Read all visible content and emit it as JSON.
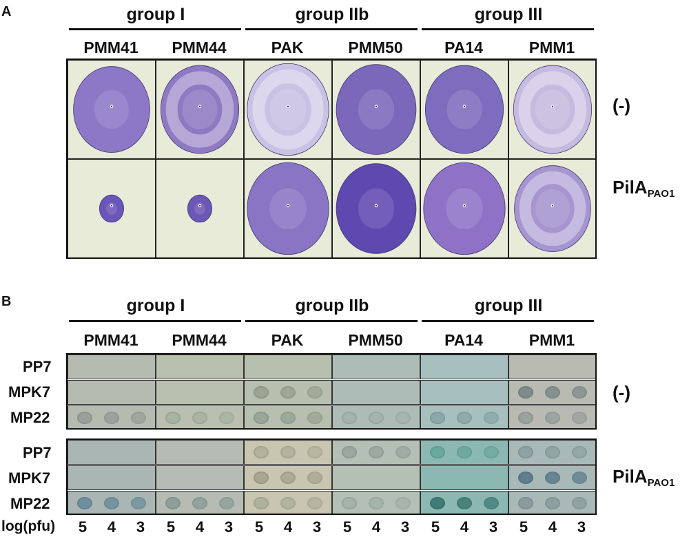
{
  "panelA": {
    "letter": "A",
    "groups": [
      "group I",
      "group IIb",
      "group III"
    ],
    "strains": [
      "PMM41",
      "PMM44",
      "PAK",
      "PMM50",
      "PA14",
      "PMM1"
    ],
    "conditions": {
      "neg": "(-)",
      "pila_main": "PilA",
      "pila_sub": "PAO1"
    }
  },
  "panelB": {
    "letter": "B",
    "groups": [
      "group I",
      "group IIb",
      "group III"
    ],
    "strains": [
      "PMM41",
      "PMM44",
      "PAK",
      "PMM50",
      "PA14",
      "PMM1"
    ],
    "phages": [
      "PP7",
      "MPK7",
      "MP22"
    ],
    "conditions": {
      "neg": "(-)",
      "pila_main": "PilA",
      "pila_sub": "PAO1"
    },
    "footer_label": "log(pfu)",
    "dilutions": [
      "5",
      "4",
      "3"
    ]
  },
  "colors": {
    "plate_bg": "#e7ebd8",
    "violet": "#7a63b8",
    "bg_neg": [
      "#b6bbb2",
      "#b9c0ad",
      "#b7bfae",
      "#adbcb6",
      "#a7c0bf",
      "#b9bbb3"
    ],
    "bg_pil": [
      "#a9b6b4",
      "#b6bcb3",
      "#c8c6b1",
      "#b5c0b5",
      "#8cb8b3",
      "#a8b9b7"
    ]
  }
}
